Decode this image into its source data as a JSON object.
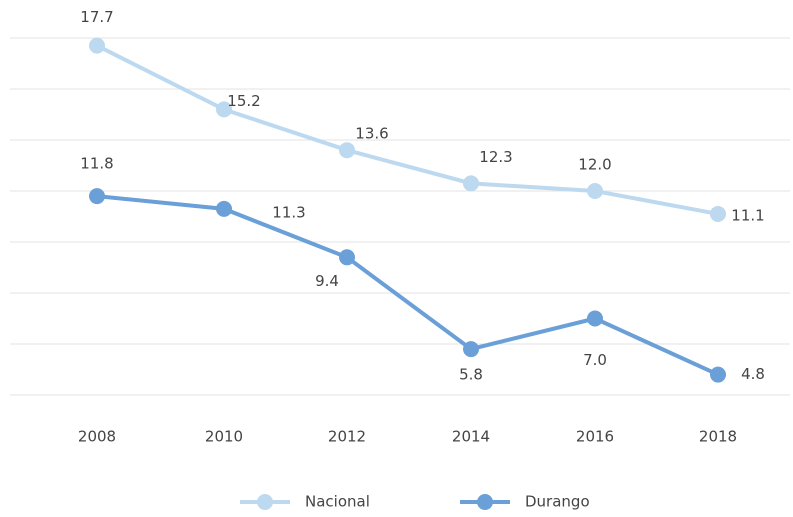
{
  "chart_data": {
    "type": "line",
    "categories": [
      "2008",
      "2010",
      "2012",
      "2014",
      "2016",
      "2018"
    ],
    "series": [
      {
        "name": "Nacional",
        "color": "#bdd9ef",
        "values": [
          17.7,
          15.2,
          13.6,
          12.3,
          12.0,
          11.1
        ],
        "value_labels": [
          "17.7",
          "15.2",
          "13.6",
          "12.3",
          "12.0",
          "11.1"
        ]
      },
      {
        "name": "Durango",
        "color": "#6a9fd8",
        "values": [
          11.8,
          11.3,
          9.4,
          5.8,
          7.0,
          4.8
        ],
        "value_labels": [
          "11.8",
          "11.3",
          "9.4",
          "5.8",
          "7.0",
          "4.8"
        ]
      }
    ],
    "ylim": [
      4,
      18
    ],
    "yticks": [
      4,
      6,
      8,
      10,
      12,
      14,
      16,
      18
    ],
    "grid": true,
    "legend": "bottom"
  }
}
